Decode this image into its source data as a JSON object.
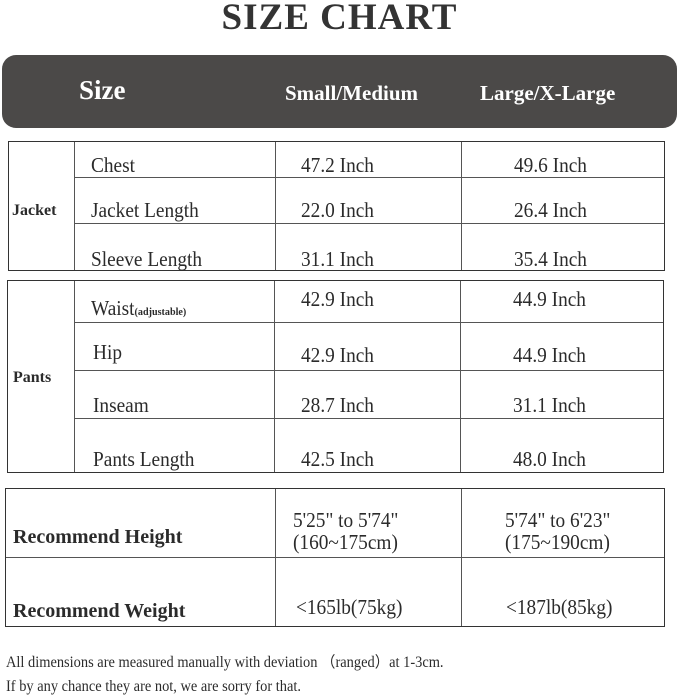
{
  "title": "SIZE CHART",
  "header": {
    "size": "Size",
    "col1": "Small/Medium",
    "col2": "Large/X-Large"
  },
  "jacket": {
    "label": "Jacket",
    "rows": [
      {
        "name": "Chest",
        "sm": "47.2 Inch",
        "lx": "49.6 Inch"
      },
      {
        "name": "Jacket Length",
        "sm": "22.0 Inch",
        "lx": "26.4 Inch"
      },
      {
        "name": "Sleeve Length",
        "sm": "31.1 Inch",
        "lx": "35.4 Inch"
      }
    ]
  },
  "pants": {
    "label": "Pants",
    "rows": [
      {
        "name": "Waist",
        "note": "(adjustable)",
        "sm": "42.9 Inch",
        "lx": "44.9 Inch"
      },
      {
        "name": "Hip",
        "sm": "42.9 Inch",
        "lx": "44.9 Inch"
      },
      {
        "name": "Inseam",
        "sm": "28.7 Inch",
        "lx": "31.1 Inch"
      },
      {
        "name": "Pants Length",
        "sm": "42.5 Inch",
        "lx": "48.0 Inch"
      }
    ]
  },
  "recommend": {
    "height": {
      "label": "Recommend Height",
      "sm_line1": "5'25\" to 5'74\"",
      "sm_line2": "(160~175cm)",
      "lx_line1": "5'74\" to 6'23\"",
      "lx_line2": "(175~190cm)"
    },
    "weight": {
      "label": "Recommend Weight",
      "sm": "<165lb(75kg)",
      "lx": "<187lb(85kg)"
    }
  },
  "footer": {
    "line1": "All dimensions are measured manually with deviation （ranged）at 1-3cm.",
    "line2": "If by any chance they are not, we are sorry for that."
  }
}
